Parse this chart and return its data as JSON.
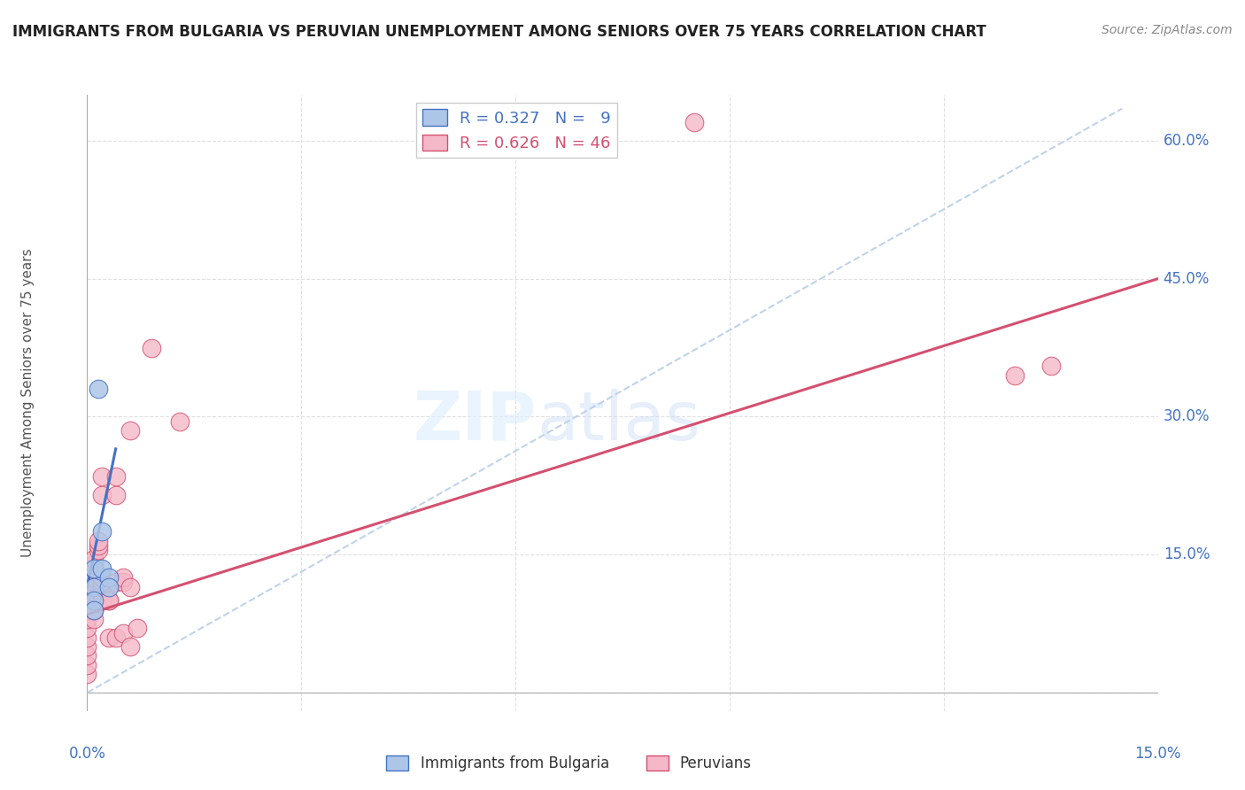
{
  "title": "IMMIGRANTS FROM BULGARIA VS PERUVIAN UNEMPLOYMENT AMONG SENIORS OVER 75 YEARS CORRELATION CHART",
  "source": "Source: ZipAtlas.com",
  "ylabel": "Unemployment Among Seniors over 75 years",
  "ylabel_ticks_right": [
    "15.0%",
    "30.0%",
    "45.0%",
    "60.0%"
  ],
  "ylabel_ticks_right_vals": [
    0.15,
    0.3,
    0.45,
    0.6
  ],
  "legend_label1": "Immigrants from Bulgaria",
  "legend_label2": "Peruvians",
  "bg_color": "#ffffff",
  "grid_color": "#e0e0e0",
  "bulgaria_color": "#adc6e8",
  "peru_color": "#f5b8c8",
  "bulgaria_line_color": "#4472c4",
  "peru_line_color": "#d45070",
  "diagonal_color": "#b8cfe8",
  "xlim": [
    0.0,
    0.15
  ],
  "ylim": [
    -0.02,
    0.65
  ],
  "bulgaria_points": [
    [
      0.001,
      0.115
    ],
    [
      0.001,
      0.135
    ],
    [
      0.001,
      0.1
    ],
    [
      0.001,
      0.09
    ],
    [
      0.0015,
      0.33
    ],
    [
      0.002,
      0.175
    ],
    [
      0.002,
      0.135
    ],
    [
      0.003,
      0.125
    ],
    [
      0.003,
      0.115
    ]
  ],
  "peru_points": [
    [
      0.0,
      0.02
    ],
    [
      0.0,
      0.03
    ],
    [
      0.0,
      0.04
    ],
    [
      0.0,
      0.05
    ],
    [
      0.0,
      0.06
    ],
    [
      0.0,
      0.07
    ],
    [
      0.0,
      0.08
    ],
    [
      0.0,
      0.09
    ],
    [
      0.001,
      0.08
    ],
    [
      0.001,
      0.09
    ],
    [
      0.001,
      0.1
    ],
    [
      0.001,
      0.105
    ],
    [
      0.001,
      0.11
    ],
    [
      0.001,
      0.115
    ],
    [
      0.001,
      0.12
    ],
    [
      0.001,
      0.125
    ],
    [
      0.001,
      0.135
    ],
    [
      0.001,
      0.14
    ],
    [
      0.001,
      0.145
    ],
    [
      0.0015,
      0.155
    ],
    [
      0.0015,
      0.16
    ],
    [
      0.0015,
      0.165
    ],
    [
      0.002,
      0.1
    ],
    [
      0.002,
      0.115
    ],
    [
      0.002,
      0.12
    ],
    [
      0.002,
      0.125
    ],
    [
      0.002,
      0.215
    ],
    [
      0.002,
      0.235
    ],
    [
      0.003,
      0.06
    ],
    [
      0.003,
      0.1
    ],
    [
      0.003,
      0.1
    ],
    [
      0.004,
      0.215
    ],
    [
      0.004,
      0.235
    ],
    [
      0.004,
      0.06
    ],
    [
      0.004,
      0.12
    ],
    [
      0.005,
      0.065
    ],
    [
      0.005,
      0.12
    ],
    [
      0.005,
      0.125
    ],
    [
      0.006,
      0.05
    ],
    [
      0.006,
      0.115
    ],
    [
      0.006,
      0.285
    ],
    [
      0.007,
      0.07
    ],
    [
      0.009,
      0.375
    ],
    [
      0.013,
      0.295
    ],
    [
      0.085,
      0.62
    ],
    [
      0.13,
      0.345
    ],
    [
      0.135,
      0.355
    ]
  ],
  "bulgaria_line": [
    [
      0.0,
      0.115
    ],
    [
      0.004,
      0.265
    ]
  ],
  "peru_line": [
    [
      0.0,
      0.085
    ],
    [
      0.15,
      0.45
    ]
  ],
  "diagonal_line": [
    [
      0.0,
      0.0
    ],
    [
      0.145,
      0.635
    ]
  ]
}
